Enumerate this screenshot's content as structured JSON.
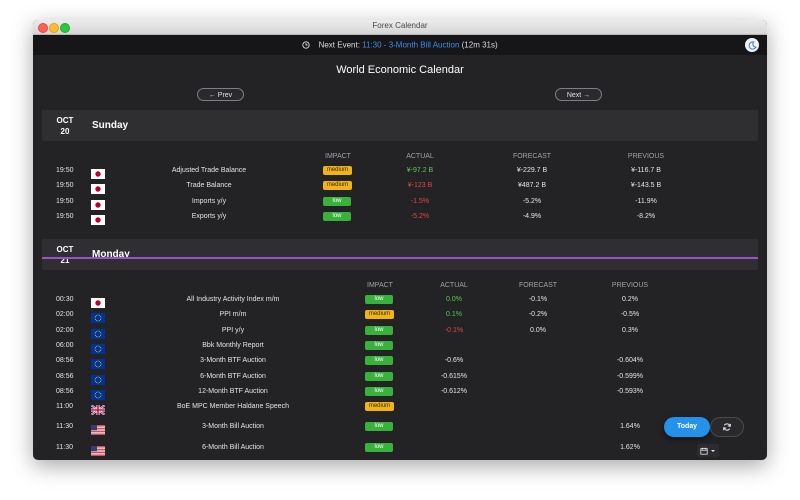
{
  "window": {
    "title": "Forex Calendar"
  },
  "next_event": {
    "label": "Next Event:",
    "name": "11:30 - 3-Month Bill Auction",
    "countdown": "(12m 31s)"
  },
  "page_title": "World Economic Calendar",
  "nav": {
    "prev": "← Prev",
    "next": "Next →"
  },
  "columns": {
    "impact": "IMPACT",
    "actual": "ACTUAL",
    "forecast": "FORECAST",
    "previous": "PREVIOUS"
  },
  "days": [
    {
      "month": "OCT",
      "day": "20",
      "weekday": "Sunday",
      "events": [
        {
          "time": "19:50",
          "flag": "JP",
          "name": "Adjusted Trade Balance",
          "impact": "medium",
          "actual": "¥-97.2 B",
          "actual_color": "green",
          "forecast": "¥-229.7 B",
          "previous": "¥-116.7 B"
        },
        {
          "time": "19:50",
          "flag": "JP",
          "name": "Trade Balance",
          "impact": "medium",
          "actual": "¥-123 B",
          "actual_color": "red",
          "forecast": "¥487.2 B",
          "previous": "¥-143.5 B"
        },
        {
          "time": "19:50",
          "flag": "JP",
          "name": "Imports y/y",
          "impact": "low",
          "actual": "-1.5%",
          "actual_color": "red",
          "forecast": "-5.2%",
          "previous": "-11.9%"
        },
        {
          "time": "19:50",
          "flag": "JP",
          "name": "Exports y/y",
          "impact": "low",
          "actual": "-5.2%",
          "actual_color": "red",
          "forecast": "-4.9%",
          "previous": "-8.2%"
        }
      ]
    },
    {
      "month": "OCT",
      "day": "21",
      "weekday": "Monday",
      "events": [
        {
          "time": "00:30",
          "flag": "JP",
          "name": "All Industry Activity Index m/m",
          "impact": "low",
          "actual": "0.0%",
          "actual_color": "green",
          "forecast": "-0.1%",
          "previous": "0.2%"
        },
        {
          "time": "02:00",
          "flag": "EU",
          "name": "PPI m/m",
          "impact": "medium",
          "actual": "0.1%",
          "actual_color": "green",
          "forecast": "-0.2%",
          "previous": "-0.5%"
        },
        {
          "time": "02:00",
          "flag": "EU",
          "name": "PPI y/y",
          "impact": "low",
          "actual": "-0.1%",
          "actual_color": "red",
          "forecast": "0.0%",
          "previous": "0.3%"
        },
        {
          "time": "06:00",
          "flag": "EU",
          "name": "Bbk Monthly Report",
          "impact": "low",
          "actual": "",
          "actual_color": "white",
          "forecast": "",
          "previous": ""
        },
        {
          "time": "08:56",
          "flag": "EU",
          "name": "3-Month BTF Auction",
          "impact": "low",
          "actual": "-0.6%",
          "actual_color": "white",
          "forecast": "",
          "previous": "-0.604%"
        },
        {
          "time": "08:56",
          "flag": "EU",
          "name": "6-Month BTF Auction",
          "impact": "low",
          "actual": "-0.615%",
          "actual_color": "white",
          "forecast": "",
          "previous": "-0.599%"
        },
        {
          "time": "08:56",
          "flag": "EU",
          "name": "12-Month BTF Auction",
          "impact": "low",
          "actual": "-0.612%",
          "actual_color": "white",
          "forecast": "",
          "previous": "-0.593%"
        },
        {
          "time": "11:00",
          "flag": "GB",
          "name": "BoE MPC Member Haldane Speech",
          "impact": "medium",
          "actual": "",
          "actual_color": "white",
          "forecast": "",
          "previous": ""
        },
        {
          "time": "11:30",
          "flag": "US",
          "name": "3-Month Bill Auction",
          "impact": "low",
          "actual": "",
          "actual_color": "white",
          "forecast": "",
          "previous": "1.64%"
        },
        {
          "time": "11:30",
          "flag": "US",
          "name": "6-Month Bill Auction",
          "impact": "low",
          "actual": "",
          "actual_color": "white",
          "forecast": "",
          "previous": "1.62%"
        }
      ]
    }
  ],
  "buttons": {
    "today": "Today"
  },
  "colors": {
    "accent": "#2591ea",
    "low": "#39b23c",
    "medium": "#f0b418",
    "positive": "#51cc50",
    "negative": "#e04646",
    "separator": "#9a4fd6"
  }
}
